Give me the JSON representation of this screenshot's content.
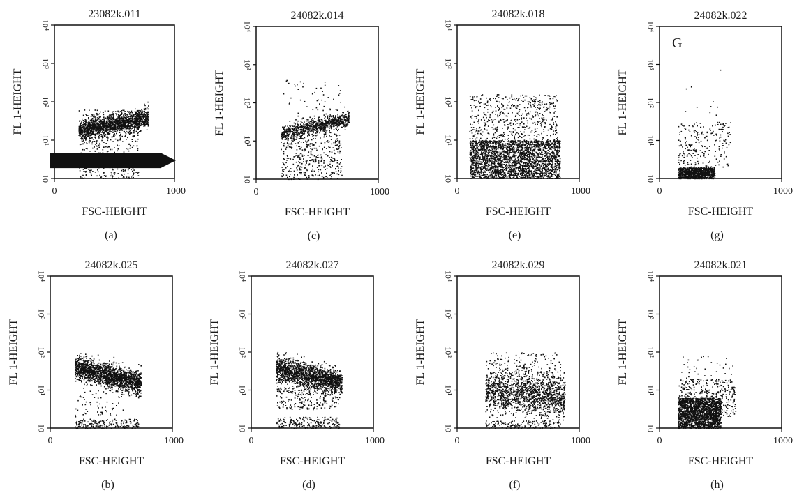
{
  "colors": {
    "ink": "#111111",
    "background": "#ffffff"
  },
  "panels": [
    {
      "label": "(a)",
      "title": "23082k.011",
      "ylabel": "FL 1-HEIGHT",
      "xlabel": "FSC-HEIGHT"
    },
    {
      "label": "(c)",
      "title": "24082k.014",
      "ylabel": "FL 1-HEIGHT",
      "xlabel": "FSC-HEIGHT"
    },
    {
      "label": "(e)",
      "title": "24082k.018",
      "ylabel": "FL 1-HEIGHT",
      "xlabel": "FSC-HEIGHT"
    },
    {
      "label": "(g)",
      "title": "24082k.022",
      "ylabel": "FL 1-HEIGHT",
      "xlabel": "FSC-HEIGHT",
      "annotation": "G"
    },
    {
      "label": "(b)",
      "title": "24082k.025",
      "ylabel": "FL 1-HEIGHT",
      "xlabel": "FSC-HEIGHT"
    },
    {
      "label": "(d)",
      "title": "24082k.027",
      "ylabel": "FL 1-HEIGHT",
      "xlabel": "FSC-HEIGHT"
    },
    {
      "label": "(f)",
      "title": "24082k.029",
      "ylabel": "FL 1-HEIGHT",
      "xlabel": "FSC-HEIGHT"
    },
    {
      "label": "(h)",
      "title": "24082k.021",
      "ylabel": "FL 1-HEIGHT",
      "xlabel": "FSC-HEIGHT"
    }
  ],
  "chart_data": [
    {
      "type": "scatter",
      "panel": "(a)",
      "title": "23082k.011",
      "xlabel": "FSC-HEIGHT",
      "ylabel": "FL 1-HEIGHT",
      "xlim": [
        0,
        1000
      ],
      "ylim": [
        1,
        10000
      ],
      "y_scale": "log",
      "x_ticks": [
        "0",
        "1000"
      ],
      "y_ticks": [
        "10",
        "10¹",
        "10²",
        "10³",
        "10⁴"
      ],
      "annotations": [
        "arrow pointing right"
      ],
      "populations": [
        {
          "name": "",
          "n": 1500,
          "x_range": [
            200,
            780
          ],
          "log_y_center_start": 1.25,
          "log_y_center_end": 1.6,
          "log_y_spread": 0.13
        },
        {
          "name": "",
          "n": 500,
          "x_range": [
            200,
            700
          ],
          "log_y_range": [
            0.0,
            1.8
          ]
        }
      ]
    },
    {
      "type": "scatter",
      "panel": "(c)",
      "title": "24082k.014",
      "xlabel": "FSC-HEIGHT",
      "ylabel": "FL 1-HEIGHT",
      "xlim": [
        0,
        1000
      ],
      "ylim": [
        1,
        10000
      ],
      "y_scale": "log",
      "x_ticks": [
        "0",
        "1000"
      ],
      "y_ticks": [
        "10",
        "10¹",
        "10²",
        "10³",
        "10⁴"
      ],
      "populations": [
        {
          "name": "",
          "n": 850,
          "x_range": [
            200,
            760
          ],
          "log_y_center_start": 1.2,
          "log_y_center_end": 1.6,
          "log_y_spread": 0.1
        },
        {
          "name": "",
          "n": 400,
          "x_range": [
            200,
            700
          ],
          "log_y_range": [
            0.0,
            1.2
          ]
        },
        {
          "name": "",
          "n": 60,
          "x_range": [
            200,
            700
          ],
          "log_y_range": [
            1.5,
            2.6
          ]
        }
      ]
    },
    {
      "type": "scatter",
      "panel": "(e)",
      "title": "24082k.018",
      "xlabel": "FSC-HEIGHT",
      "ylabel": "FL 1-HEIGHT",
      "xlim": [
        0,
        1000
      ],
      "ylim": [
        1,
        10000
      ],
      "y_scale": "log",
      "x_ticks": [
        "0",
        "1000"
      ],
      "y_ticks": [
        "10",
        "10¹",
        "10²",
        "10³",
        "10⁴"
      ],
      "populations": [
        {
          "name": "",
          "n": 2600,
          "x_range": [
            100,
            840
          ],
          "log_y_range": [
            0.0,
            1.0
          ]
        },
        {
          "name": "",
          "n": 600,
          "x_range": [
            100,
            820
          ],
          "log_y_range": [
            0.9,
            2.2
          ]
        }
      ]
    },
    {
      "type": "scatter",
      "panel": "(g)",
      "title": "24082k.022",
      "xlabel": "FSC-HEIGHT",
      "ylabel": "FL 1-HEIGHT",
      "xlim": [
        0,
        1000
      ],
      "ylim": [
        1,
        10000
      ],
      "y_scale": "log",
      "x_ticks": [
        "0",
        "1000"
      ],
      "y_ticks": [
        "10",
        "10¹",
        "10²",
        "10³",
        "10⁴"
      ],
      "annotations": [
        "G"
      ],
      "populations": [
        {
          "name": "",
          "n": 900,
          "x_range": [
            150,
            450
          ],
          "log_y_range": [
            0.0,
            0.3
          ]
        },
        {
          "name": "",
          "n": 220,
          "x_range": [
            150,
            580
          ],
          "log_y_range": [
            0.3,
            1.5
          ]
        },
        {
          "name": "",
          "n": 10,
          "x_range": [
            200,
            500
          ],
          "log_y_range": [
            1.5,
            2.9
          ]
        }
      ]
    },
    {
      "type": "scatter",
      "panel": "(b)",
      "title": "24082k.025",
      "xlabel": "FSC-HEIGHT",
      "ylabel": "FL 1-HEIGHT",
      "xlim": [
        0,
        1000
      ],
      "ylim": [
        1,
        10000
      ],
      "y_scale": "log",
      "x_ticks": [
        "0",
        "1000"
      ],
      "y_ticks": [
        "10",
        "10¹",
        "10²",
        "10³",
        "10⁴"
      ],
      "populations": [
        {
          "name": "",
          "n": 1800,
          "x_range": [
            200,
            740
          ],
          "log_y_center_start": 1.6,
          "log_y_center_end": 1.2,
          "log_y_spread": 0.15
        },
        {
          "name": "",
          "n": 180,
          "x_range": [
            200,
            720
          ],
          "log_y_range": [
            0.0,
            0.25
          ]
        },
        {
          "name": "",
          "n": 60,
          "x_range": [
            200,
            600
          ],
          "log_y_range": [
            0.3,
            1.0
          ]
        }
      ]
    },
    {
      "type": "scatter",
      "panel": "(d)",
      "title": "24082k.027",
      "xlabel": "FSC-HEIGHT",
      "ylabel": "FL 1-HEIGHT",
      "xlim": [
        0,
        1000
      ],
      "ylim": [
        1,
        10000
      ],
      "y_scale": "log",
      "x_ticks": [
        "0",
        "1000"
      ],
      "y_ticks": [
        "10",
        "10¹",
        "10²",
        "10³",
        "10⁴"
      ],
      "populations": [
        {
          "name": "",
          "n": 1600,
          "x_range": [
            200,
            740
          ],
          "log_y_center_start": 1.6,
          "log_y_center_end": 1.2,
          "log_y_spread": 0.16
        },
        {
          "name": "",
          "n": 350,
          "x_range": [
            200,
            720
          ],
          "log_y_range": [
            0.5,
            1.4
          ]
        },
        {
          "name": "",
          "n": 200,
          "x_range": [
            200,
            720
          ],
          "log_y_range": [
            0.0,
            0.3
          ]
        }
      ]
    },
    {
      "type": "scatter",
      "panel": "(f)",
      "title": "24082k.029",
      "xlabel": "FSC-HEIGHT",
      "ylabel": "FL 1-HEIGHT",
      "xlim": [
        0,
        1000
      ],
      "ylim": [
        1,
        10000
      ],
      "y_scale": "log",
      "x_ticks": [
        "0",
        "1000"
      ],
      "y_ticks": [
        "10",
        "10¹",
        "10²",
        "10³",
        "10⁴"
      ],
      "populations": [
        {
          "name": "",
          "n": 1500,
          "x_range": [
            230,
            880
          ],
          "log_y_center_start": 1.0,
          "log_y_center_end": 0.8,
          "log_y_spread": 0.28
        },
        {
          "name": "",
          "n": 150,
          "x_range": [
            230,
            840
          ],
          "log_y_range": [
            0.0,
            0.2
          ]
        },
        {
          "name": "",
          "n": 140,
          "x_range": [
            250,
            850
          ],
          "log_y_range": [
            1.3,
            2.0
          ]
        }
      ]
    },
    {
      "type": "scatter",
      "panel": "(h)",
      "title": "24082k.021",
      "xlabel": "FSC-HEIGHT",
      "ylabel": "FL 1-HEIGHT",
      "xlim": [
        0,
        1000
      ],
      "ylim": [
        1,
        10000
      ],
      "y_scale": "log",
      "x_ticks": [
        "0",
        "1000"
      ],
      "y_ticks": [
        "10",
        "10¹",
        "10²",
        "10³",
        "10⁴"
      ],
      "populations": [
        {
          "name": "",
          "n": 1900,
          "x_range": [
            150,
            500
          ],
          "log_y_range": [
            0.0,
            0.8
          ]
        },
        {
          "name": "",
          "n": 350,
          "x_range": [
            150,
            620
          ],
          "log_y_range": [
            0.3,
            1.3
          ]
        },
        {
          "name": "",
          "n": 50,
          "x_range": [
            160,
            600
          ],
          "log_y_range": [
            1.0,
            1.9
          ]
        }
      ]
    }
  ]
}
